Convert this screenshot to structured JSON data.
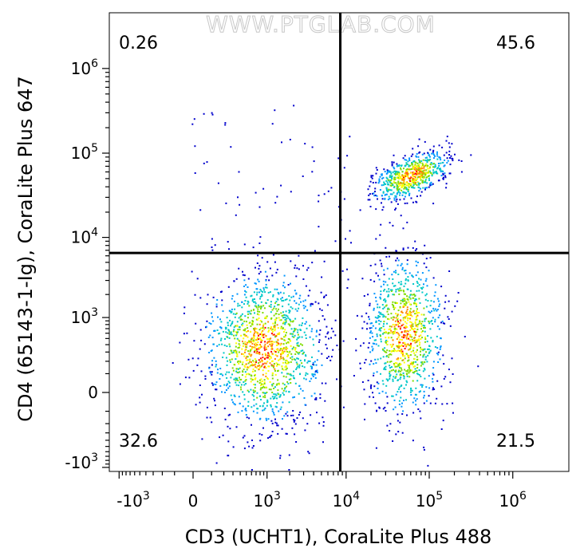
{
  "chart_data": {
    "type": "scatter",
    "subtype": "flow-cytometry-density-dot-plot",
    "watermark": "WWW.PTGLAB.COM",
    "xlabel": "CD3 (UCHT1), CoraLite Plus 488",
    "ylabel": "CD4 (65143-1-Ig), CoraLite Plus 647",
    "x_scale": "biexponential",
    "y_scale": "biexponential",
    "x_ticks": [
      {
        "base": "-10",
        "exp": "3"
      },
      {
        "base": "0",
        "exp": ""
      },
      {
        "base": "10",
        "exp": "3"
      },
      {
        "base": "10",
        "exp": "4"
      },
      {
        "base": "10",
        "exp": "5"
      },
      {
        "base": "10",
        "exp": "6"
      }
    ],
    "y_ticks": [
      {
        "base": "-10",
        "exp": "3"
      },
      {
        "base": "0",
        "exp": ""
      },
      {
        "base": "10",
        "exp": "3"
      },
      {
        "base": "10",
        "exp": "4"
      },
      {
        "base": "10",
        "exp": "5"
      },
      {
        "base": "10",
        "exp": "6"
      }
    ],
    "gate": {
      "x": 8500,
      "y": 6500
    },
    "quadrants": {
      "upper_left": "0.26",
      "upper_right": "45.6",
      "lower_left": "32.6",
      "lower_right": "21.5"
    },
    "populations": [
      {
        "x_center": 900,
        "y_center": 350,
        "note": "CD3- CD4-"
      },
      {
        "x_center": 50000,
        "y_center": 600,
        "note": "CD3+ CD4-"
      },
      {
        "x_center": 60000,
        "y_center": 55000,
        "note": "CD3+ CD4+"
      }
    ],
    "colors": {
      "low_density": "#0000cc",
      "mid_density": "#00c8c8",
      "high_density": "#ffff00",
      "peak_density": "#ff0000",
      "gate_lines": "#000000"
    }
  }
}
